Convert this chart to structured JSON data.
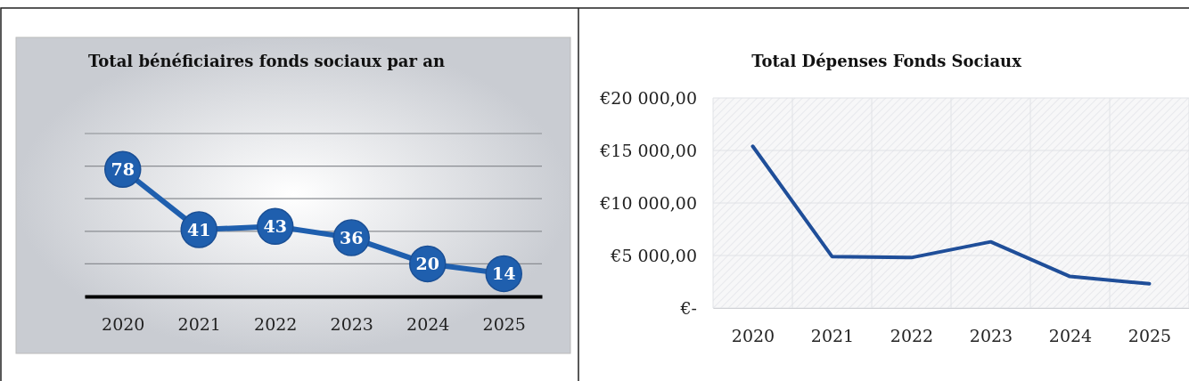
{
  "chart_data": [
    {
      "type": "line",
      "title": "Total bénéficiaires fonds sociaux par an",
      "categories": [
        "2020",
        "2021",
        "2022",
        "2023",
        "2024",
        "2025"
      ],
      "series": [
        {
          "color": "#1f5fae",
          "values": [
            78,
            41,
            43,
            36,
            20,
            14
          ]
        }
      ],
      "ylim": [
        0,
        100
      ],
      "yticks": [
        {
          "value": 0,
          "label": null
        },
        {
          "value": 20,
          "label": null
        },
        {
          "value": 40,
          "label": null
        },
        {
          "value": 60,
          "label": null
        },
        {
          "value": 80,
          "label": null
        },
        {
          "value": 100,
          "label": null
        }
      ],
      "tick_labels": "x",
      "grid": "y",
      "marker": "circle",
      "data_labels": true
    },
    {
      "type": "line",
      "title": "Total Dépenses Fonds Sociaux",
      "categories": [
        "2020",
        "2021",
        "2022",
        "2023",
        "2024",
        "2025"
      ],
      "series": [
        {
          "color": "#1f4e99",
          "values": [
            15400,
            4900,
            4800,
            6300,
            3000,
            2300
          ]
        }
      ],
      "ylim": [
        0,
        20000
      ],
      "yticks": [
        {
          "value": 0,
          "label": "€-"
        },
        {
          "value": 5000,
          "label": "€5 000,00"
        },
        {
          "value": 10000,
          "label": "€10 000,00"
        },
        {
          "value": 15000,
          "label": "€15 000,00"
        },
        {
          "value": 20000,
          "label": "€20 000,00"
        }
      ],
      "grid": true
    }
  ]
}
